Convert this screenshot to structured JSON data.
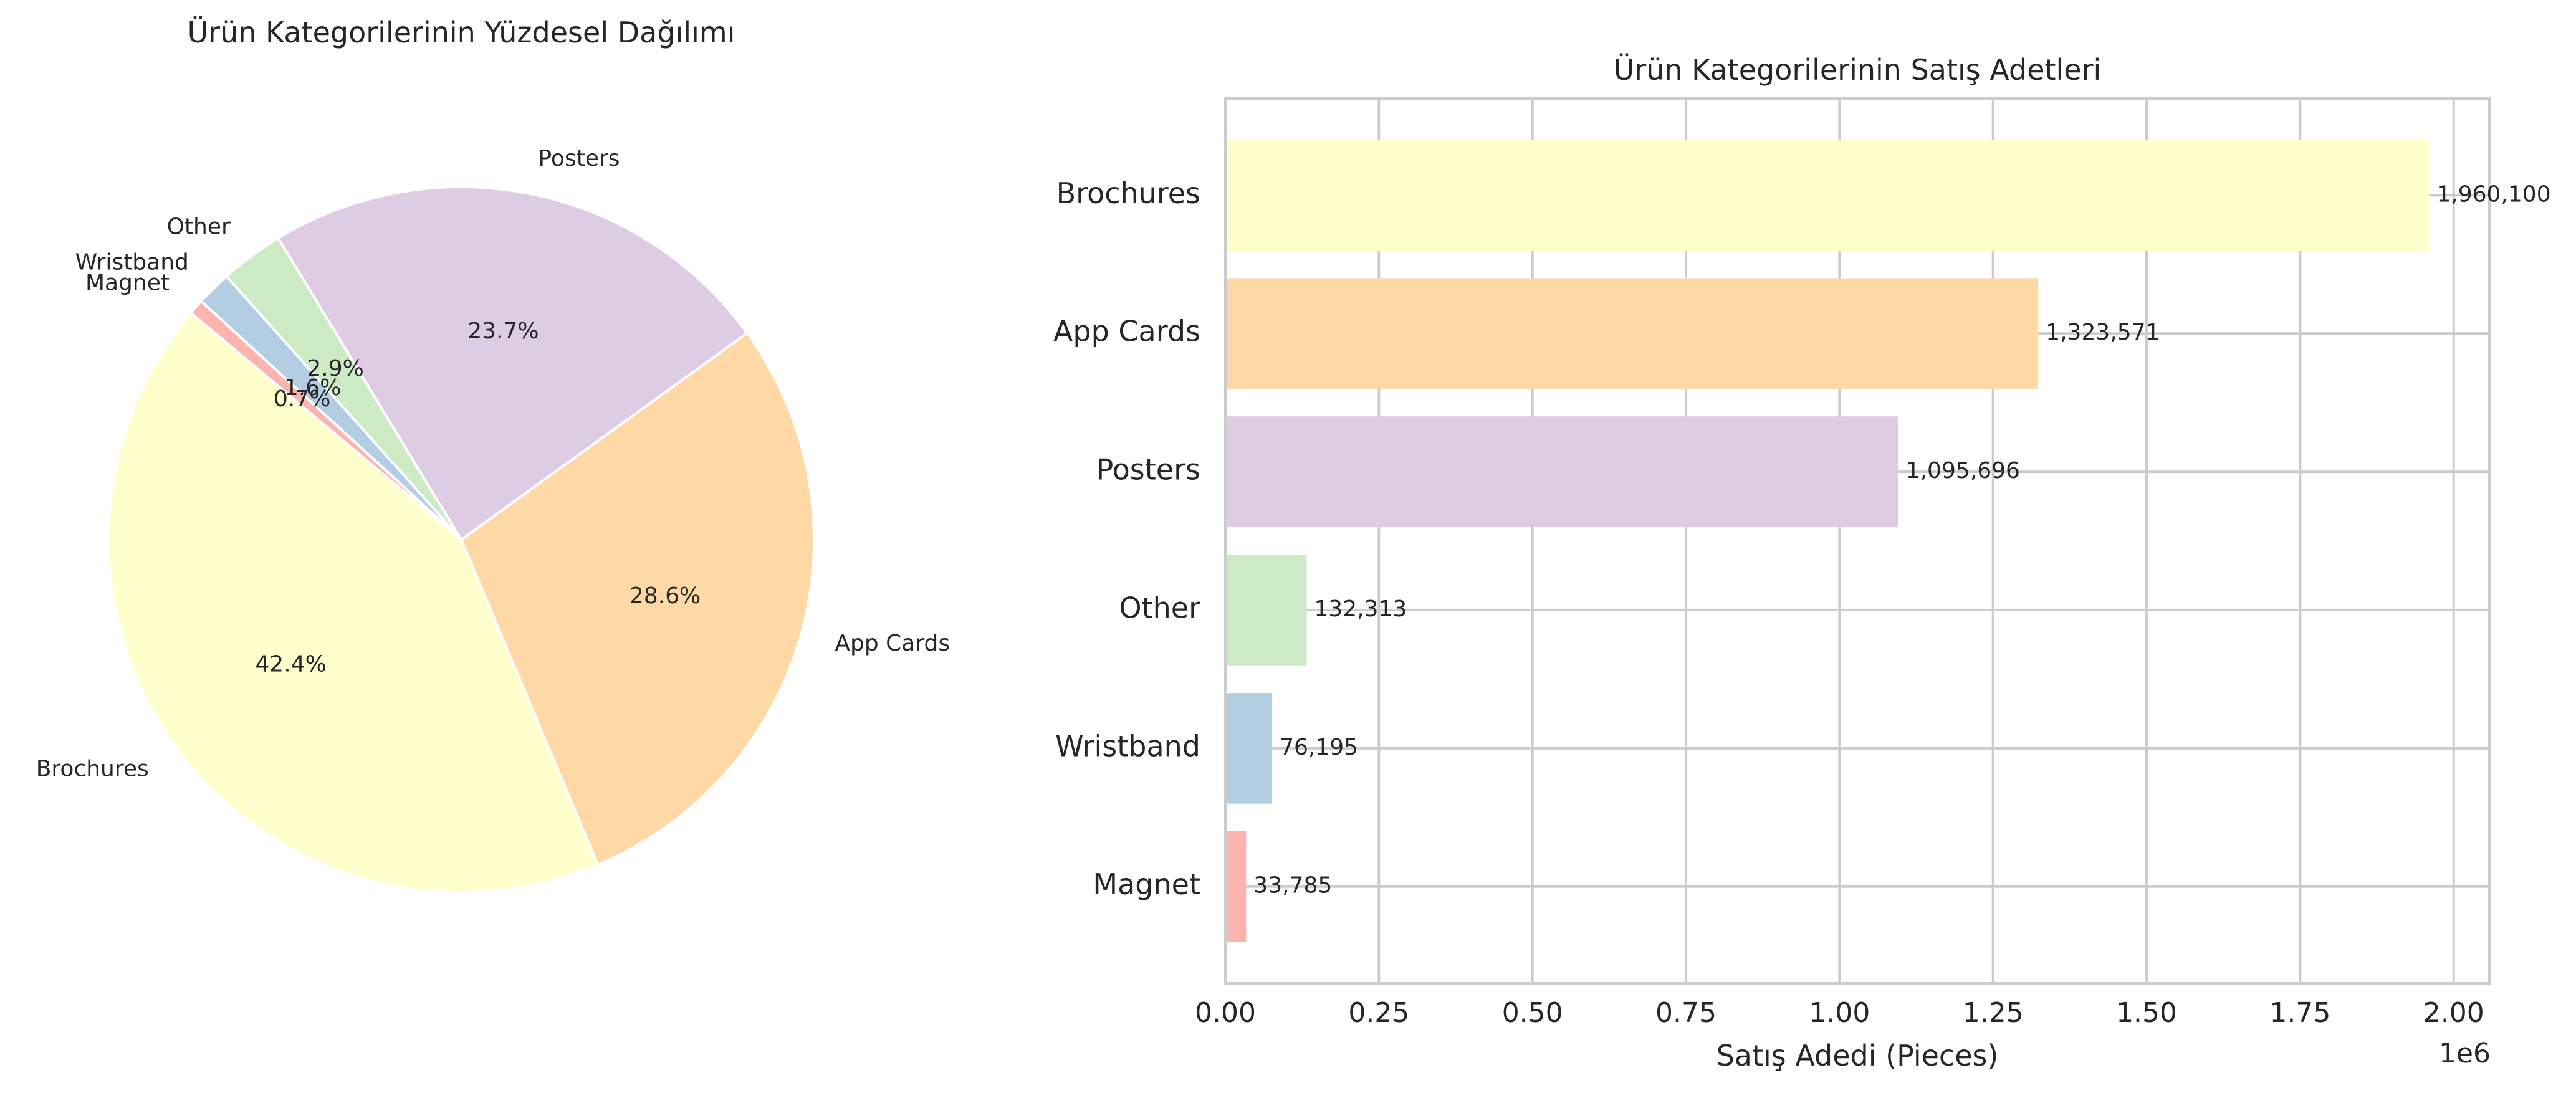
{
  "chart_data": [
    {
      "type": "pie",
      "title": "Ürün Kategorilerinin Yüzdesel Dağılımı",
      "labels": [
        "Brochures",
        "App Cards",
        "Posters",
        "Other",
        "Wristband",
        "Magnet"
      ],
      "values": [
        42.4,
        28.6,
        23.7,
        2.9,
        1.6,
        0.7
      ],
      "value_labels": [
        "42.4%",
        "28.6%",
        "23.7%",
        "2.9%",
        "1.6%",
        "0.7%"
      ],
      "colors": [
        "#ffffcc",
        "#fed9a6",
        "#decbe4",
        "#ccebc5",
        "#b3cde3",
        "#fbb4ae"
      ],
      "start_angle_deg": 140,
      "direction": "counterclockwise"
    },
    {
      "type": "bar",
      "orientation": "horizontal",
      "title": "Ürün Kategorilerinin Satış Adetleri",
      "categories": [
        "Brochures",
        "App Cards",
        "Posters",
        "Other",
        "Wristband",
        "Magnet"
      ],
      "values": [
        1960100,
        1323571,
        1095696,
        132313,
        76195,
        33785
      ],
      "data_labels": [
        "1,960,100",
        "1,323,571",
        "1,095,696",
        "132,313",
        "76,195",
        "33,785"
      ],
      "colors": [
        "#ffffcc",
        "#fed9a6",
        "#decbe4",
        "#ccebc5",
        "#b3cde3",
        "#fbb4ae"
      ],
      "xlabel": "Satış Adedi (Pieces)",
      "ylabel": "",
      "xlim": [
        0,
        2058105
      ],
      "xticks": [
        0,
        250000,
        500000,
        750000,
        1000000,
        1250000,
        1500000,
        1750000,
        2000000
      ],
      "xtick_labels": [
        "0.00",
        "0.25",
        "0.50",
        "0.75",
        "1.00",
        "1.25",
        "1.50",
        "1.75",
        "2.00"
      ],
      "x_offset_label": "1e6",
      "grid": true
    }
  ]
}
